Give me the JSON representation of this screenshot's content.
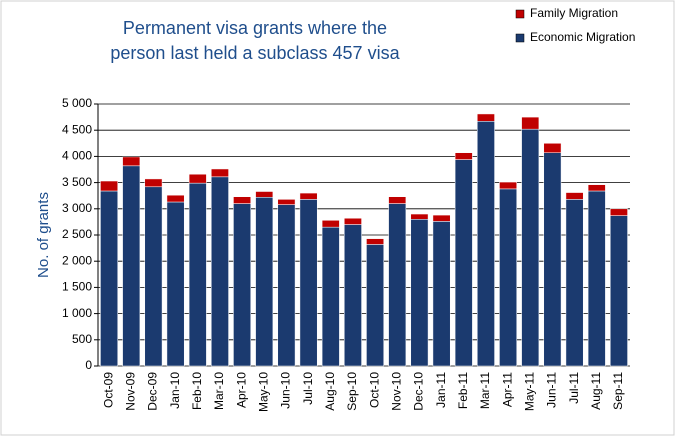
{
  "chart_data": {
    "type": "stacked_bar",
    "title": "Permanent visa grants where the person last held a subclass 457 visa",
    "y_label": "No. of grants",
    "categories": [
      "Oct-09",
      "Nov-09",
      "Dec-09",
      "Jan-10",
      "Feb-10",
      "Mar-10",
      "Apr-10",
      "May-10",
      "Jun-10",
      "Jul-10",
      "Aug-10",
      "Sep-10",
      "Oct-10",
      "Nov-10",
      "Dec-10",
      "Jan-11",
      "Feb-11",
      "Mar-11",
      "Apr-11",
      "May-11",
      "Jun-11",
      "Jul-11",
      "Aug-11",
      "Sep-11"
    ],
    "series": [
      {
        "name": "Economic Migration",
        "color": "#1b3a6f",
        "values": [
          3340,
          3820,
          3420,
          3130,
          3490,
          3610,
          3100,
          3220,
          3080,
          3180,
          2650,
          2700,
          2320,
          3100,
          2800,
          2760,
          3940,
          4670,
          3380,
          4520,
          4070,
          3180,
          3340,
          2870
        ]
      },
      {
        "name": "Family Migration",
        "color": "#c00000",
        "values": [
          190,
          170,
          150,
          130,
          170,
          150,
          130,
          110,
          100,
          120,
          130,
          120,
          110,
          130,
          100,
          120,
          130,
          140,
          130,
          230,
          180,
          130,
          120,
          130
        ]
      }
    ],
    "ylim": [
      0,
      5000
    ],
    "yticks": [
      0,
      500,
      {
        "value": 1000,
        "label": "1 000"
      },
      {
        "value": 1500,
        "label": "1 500"
      },
      {
        "value": 2000,
        "label": "2 000"
      },
      {
        "value": 2500,
        "label": "2 500"
      },
      {
        "value": 3000,
        "label": "3 000"
      },
      {
        "value": 3500,
        "label": "3 500"
      },
      {
        "value": 4000,
        "label": "4 000"
      },
      {
        "value": 4500,
        "label": "4 500"
      },
      {
        "value": 5000,
        "label": "5 000"
      }
    ],
    "grid": true,
    "legend": "top-right"
  }
}
